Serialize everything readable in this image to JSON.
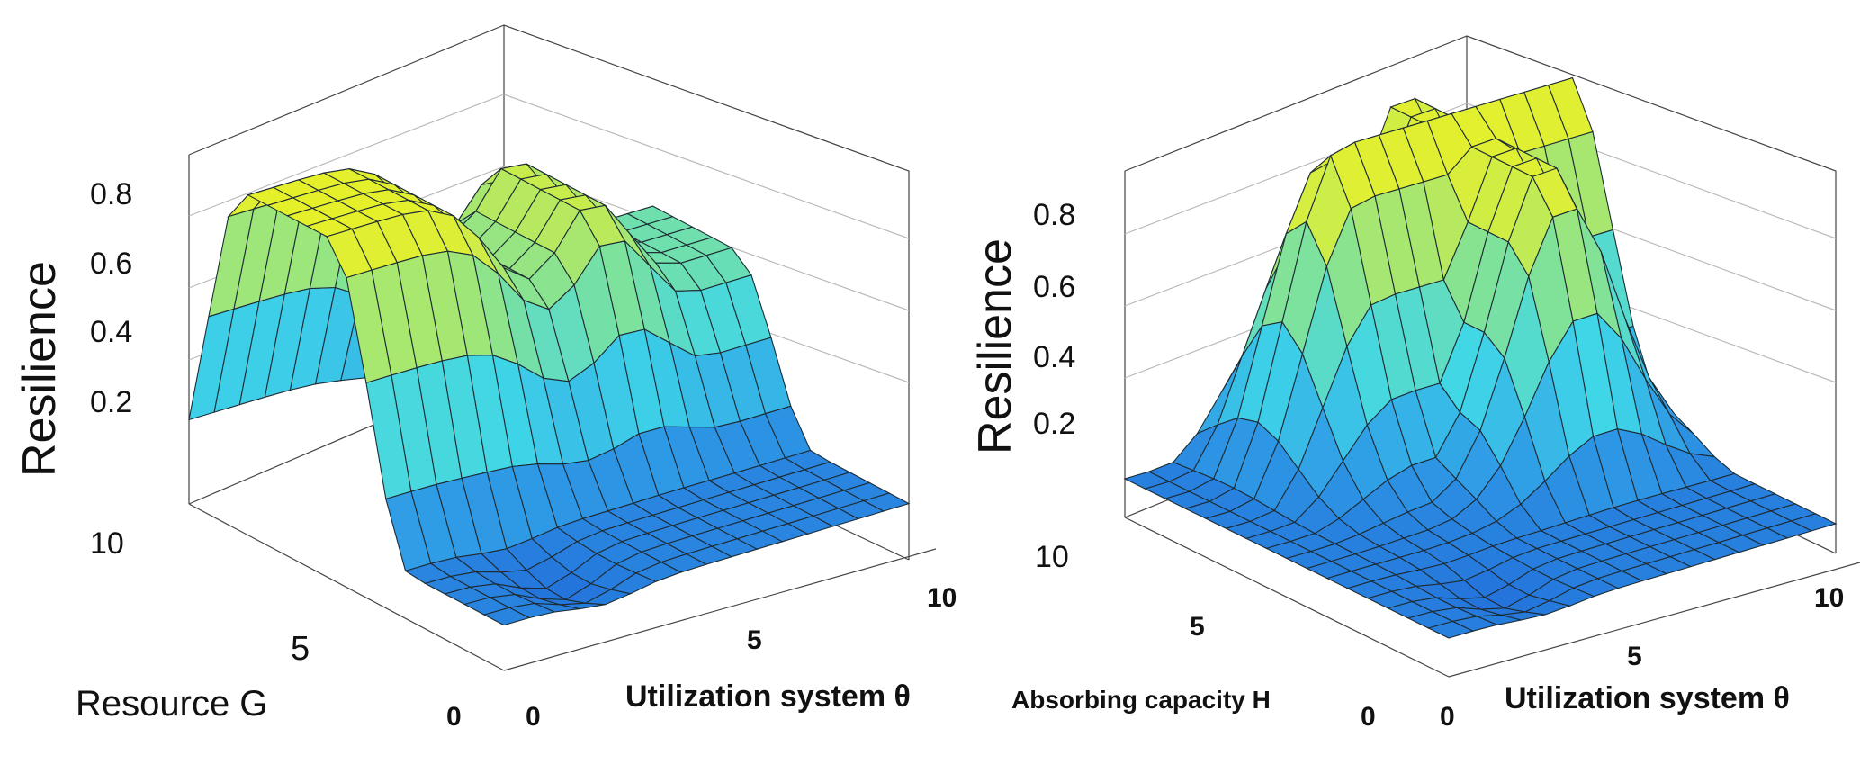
{
  "chart_data": [
    {
      "type": "surface",
      "zlabel": "Resilience",
      "ylabel": "Resource G",
      "xlabel": "Utilization system θ",
      "z_ticks": [
        "0.8",
        "0.6",
        "0.4",
        "0.2"
      ],
      "y_ticks": [
        "10",
        "5",
        "0"
      ],
      "x_ticks": [
        "0",
        "5",
        "10"
      ],
      "x_range": [
        0,
        10
      ],
      "y_range": [
        0,
        10
      ],
      "z_range": [
        0,
        1
      ],
      "colormap": [
        "#1f63d6",
        "#2f9be6",
        "#3fd6e8",
        "#7fe29a",
        "#d8ee3c",
        "#f2f21a"
      ]
    },
    {
      "type": "surface",
      "zlabel": "Resilience",
      "ylabel": "Absorbing capacity H",
      "xlabel": "Utilization system θ",
      "z_ticks": [
        "0.8",
        "0.6",
        "0.4",
        "0.2"
      ],
      "y_ticks": [
        "10",
        "5",
        "0"
      ],
      "x_ticks": [
        "0",
        "5",
        "10"
      ],
      "x_range": [
        0,
        10
      ],
      "y_range": [
        0,
        10
      ],
      "z_range": [
        0,
        1
      ],
      "colormap": [
        "#1f63d6",
        "#2f9be6",
        "#3fd6e8",
        "#7fe29a",
        "#d8ee3c",
        "#f2f21a"
      ]
    }
  ]
}
